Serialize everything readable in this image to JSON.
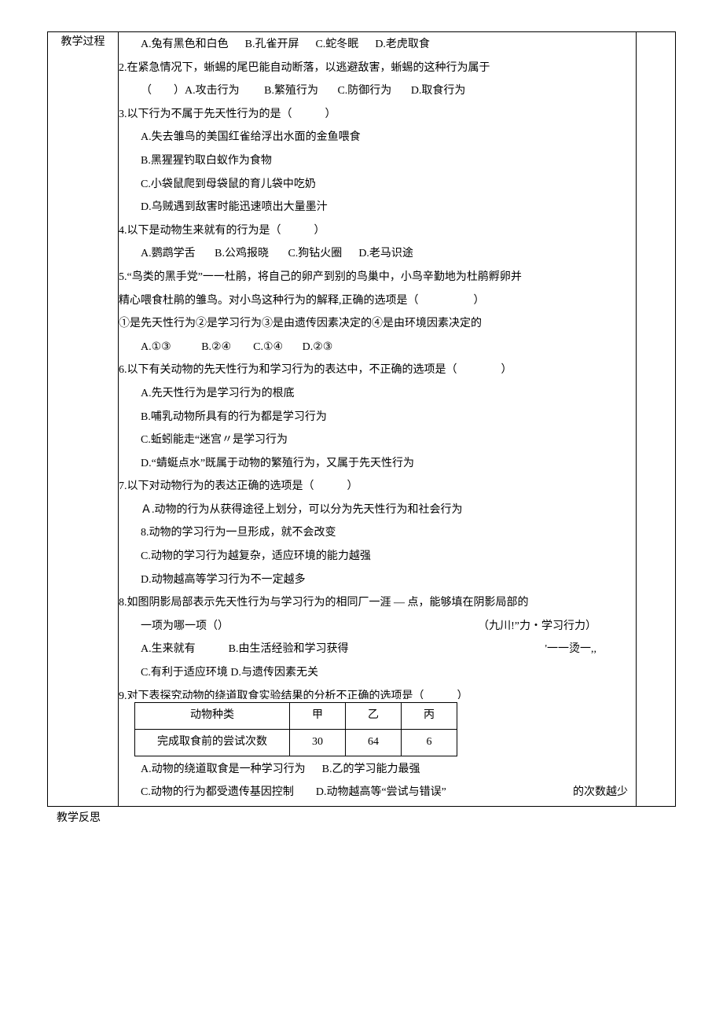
{
  "leftLabel": "教学过程",
  "reflectLabel": "教学反思",
  "q1": {
    "A": "A.兔有黑色和白色",
    "B": "B.孔雀开屏",
    "C": "C.蛇冬眠",
    "D": "D.老虎取食"
  },
  "q2": {
    "stem": "2.在紧急情况下，蜥蜴的尾巴能自动断落，以逃避敌害，蜥蜴的这种行为属于",
    "line2a": "（　　）A.攻击行为",
    "B": "B.繁殖行为",
    "C": "C.防御行为",
    "D": "D.取食行为"
  },
  "q3": {
    "stem": "3.以下行为不属于先天性行为的是（　　　）",
    "A": "A.失去雏鸟的美国红雀给浮出水面的金鱼喂食",
    "B": "B.黑猩猩钓取白蚁作为食物",
    "C": "C.小袋鼠爬到母袋鼠的育儿袋中吃奶",
    "D": "D.乌贼遇到敌害时能迅速喷出大量墨汁"
  },
  "q4": {
    "stem": "4.以下是动物生来就有的行为是（　　　）",
    "A": "A.鹦鹉学舌",
    "B": "B.公鸡报晓",
    "C": "C.狗钻火圈",
    "D": "D.老马识途"
  },
  "q5": {
    "stem1": "5.“鸟类的黑手党”一一杜鹃，将自己的卵产到别的鸟巢中，小鸟辛勤地为杜鹃孵卵并",
    "stem2": "精心喂食杜鹃的雏鸟。对小鸟这种行为的解释,正确的选项是（　　　　　）",
    "stem3": "①是先天性行为②是学习行为③是由遗传因素决定的④是由环境因素决定的",
    "A": "A.①③",
    "B": "B.②④",
    "C": "C.①④",
    "D": "D.②③"
  },
  "q6": {
    "stem": "6.以下有关动物的先天性行为和学习行为的表达中，不正确的选项是（　　　　）",
    "A": "A.先天性行为是学习行为的根底",
    "B": "B.哺乳动物所具有的行为都是学习行为",
    "C": "C.蚯蚓能走“迷宫〃是学习行为",
    "D": "D.“蜻蜓点水”既属于动物的繁殖行为，又属于先天性行为"
  },
  "q7": {
    "stem": "7.以下对动物行为的表达正确的选项是（　　　）",
    "A": "Ａ.动物的行为从获得途径上划分，可以分为先天性行为和社会行为",
    "B": "8.动物的学习行为一旦形成，就不会改变",
    "C": "C.动物的学习行为越复杂，适应环境的能力越强",
    "D": "D.动物越高等学习行为不一定越多"
  },
  "q8": {
    "stem": "8.如图阴影局部表示先天性行为与学习行为的相同厂一涯 — 点，能够填在阴影局部的",
    "line2a": "一项为哪一项（）",
    "line2b": "（九川!”力・学习行力）",
    "A": "A.生来就有",
    "B": "B.由生活经验和学习获得",
    "extra": "'一一烫一,,",
    "C": "C.有利于适应环境 D.与遗传因素无关"
  },
  "q9": {
    "stem": "9.对下表探究动物的绕道取食实验结果的分析不正确的选项是（　　　）",
    "table": {
      "headers": [
        "动物种类",
        "甲",
        "乙",
        "丙"
      ],
      "row": [
        "完成取食前的尝试次数",
        "30",
        "64",
        "6"
      ]
    },
    "A": "A.动物的绕道取食是一种学习行为",
    "B": "B.乙的学习能力最强",
    "C": "C.动物的行为都受遗传基因控制",
    "D": "D.动物越高等“尝试与错误”",
    "tail": "的次数越少"
  }
}
